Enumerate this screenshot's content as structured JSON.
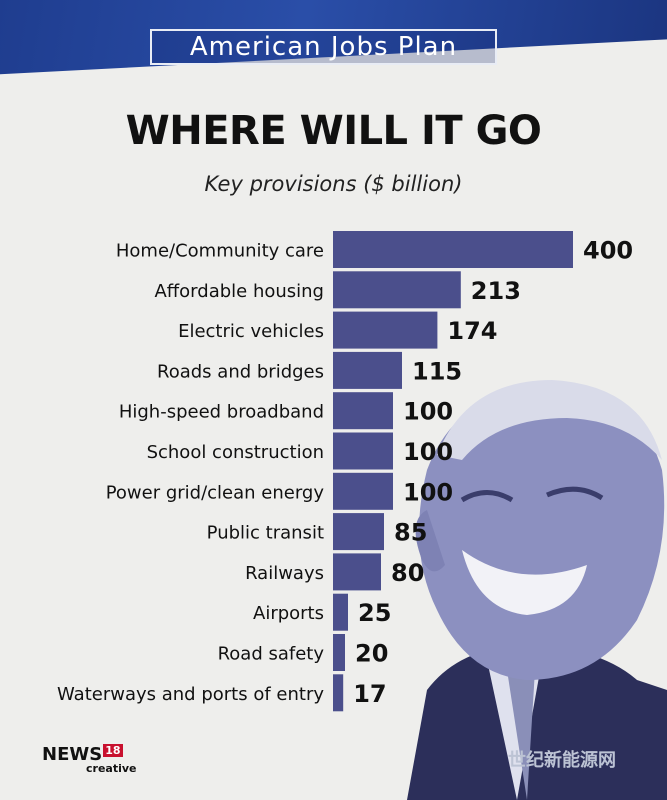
{
  "banner_title": "American Jobs Plan",
  "colors": {
    "bar": "#4b4f8c",
    "banner": "#2a4ea8",
    "text": "#111111"
  },
  "logo": {
    "main": "NEWS",
    "badge": "18",
    "sub": "creative"
  },
  "watermark": "世纪新能源网",
  "chart_data": {
    "type": "bar",
    "orientation": "horizontal",
    "title": "WHERE WILL IT GO",
    "subtitle": "Key provisions ($ billion)",
    "categories": [
      "Home/Community care",
      "Affordable housing",
      "Electric vehicles",
      "Roads and bridges",
      "High-speed broadband",
      "School construction",
      "Power grid/clean energy",
      "Public transit",
      "Railways",
      "Airports",
      "Road safety",
      "Waterways and ports of entry"
    ],
    "values": [
      400,
      213,
      174,
      115,
      100,
      100,
      100,
      85,
      80,
      25,
      20,
      17
    ],
    "value_labels": [
      "400",
      "213",
      "174",
      "115",
      "100",
      "100",
      "100",
      "85",
      "80",
      "25",
      "20",
      "17"
    ],
    "xlim": [
      0,
      400
    ],
    "grid": false,
    "legend": "none"
  }
}
